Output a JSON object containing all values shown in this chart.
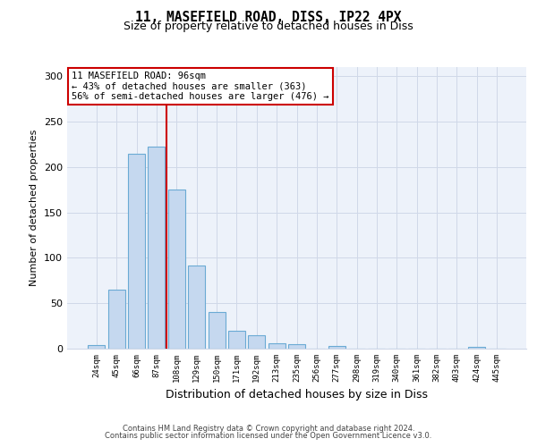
{
  "title_line1": "11, MASEFIELD ROAD, DISS, IP22 4PX",
  "title_line2": "Size of property relative to detached houses in Diss",
  "xlabel": "Distribution of detached houses by size in Diss",
  "ylabel": "Number of detached properties",
  "footnote1": "Contains HM Land Registry data © Crown copyright and database right 2024.",
  "footnote2": "Contains public sector information licensed under the Open Government Licence v3.0.",
  "categories": [
    "24sqm",
    "45sqm",
    "66sqm",
    "87sqm",
    "108sqm",
    "129sqm",
    "150sqm",
    "171sqm",
    "192sqm",
    "213sqm",
    "235sqm",
    "256sqm",
    "277sqm",
    "298sqm",
    "319sqm",
    "340sqm",
    "361sqm",
    "382sqm",
    "403sqm",
    "424sqm",
    "445sqm"
  ],
  "values": [
    4,
    65,
    215,
    222,
    175,
    92,
    40,
    20,
    15,
    6,
    5,
    0,
    3,
    0,
    0,
    0,
    0,
    0,
    0,
    2,
    0
  ],
  "bar_color": "#c5d8ef",
  "bar_edge_color": "#6aaad4",
  "grid_color": "#d0d8e8",
  "background_color": "#edf2fa",
  "annotation_text": "11 MASEFIELD ROAD: 96sqm\n← 43% of detached houses are smaller (363)\n56% of semi-detached houses are larger (476) →",
  "annotation_box_color": "#ffffff",
  "annotation_box_edge": "#cc0000",
  "vline_color": "#cc0000",
  "ylim": [
    0,
    310
  ],
  "yticks": [
    0,
    50,
    100,
    150,
    200,
    250,
    300
  ]
}
